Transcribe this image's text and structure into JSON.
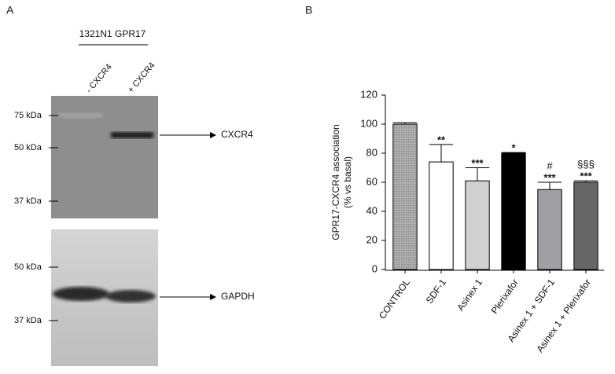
{
  "panel_a": {
    "label": "A",
    "cell_line": "1321N1 GPR17",
    "lanes": [
      "- CXCR4",
      "+ CXCR4"
    ],
    "top_markers": [
      "75 kDa",
      "50 kDa",
      "37 kDa"
    ],
    "top_band": "CXCR4",
    "bottom_markers": [
      "50 kDa",
      "37 kDa"
    ],
    "bottom_band": "GAPDH"
  },
  "chart_data": {
    "type": "bar",
    "panel_label": "B",
    "ylabel": [
      "GPR17-CXCR4 association",
      "(% vs basal)"
    ],
    "categories": [
      "CONTROL",
      "SDF-1",
      "Asinex 1",
      "Plerixafor",
      "Asinex 1 + SDF-1",
      "Asinex 1 + Plerixafor"
    ],
    "values": [
      100,
      74,
      61,
      80,
      55,
      60
    ],
    "errors": [
      1,
      12,
      9,
      0.5,
      5,
      1
    ],
    "colors": [
      "#a8a8a8",
      "#ffffff",
      "#d0d0d0",
      "#000000",
      "#a0a0a4",
      "#666666"
    ],
    "significance": [
      null,
      "**",
      "***",
      "*",
      "***",
      "***"
    ],
    "significance_vs_asinex": [
      null,
      null,
      null,
      null,
      "#",
      "§§§"
    ],
    "ylim": [
      0,
      120
    ],
    "yticks": [
      0,
      20,
      40,
      60,
      80,
      100,
      120
    ]
  }
}
